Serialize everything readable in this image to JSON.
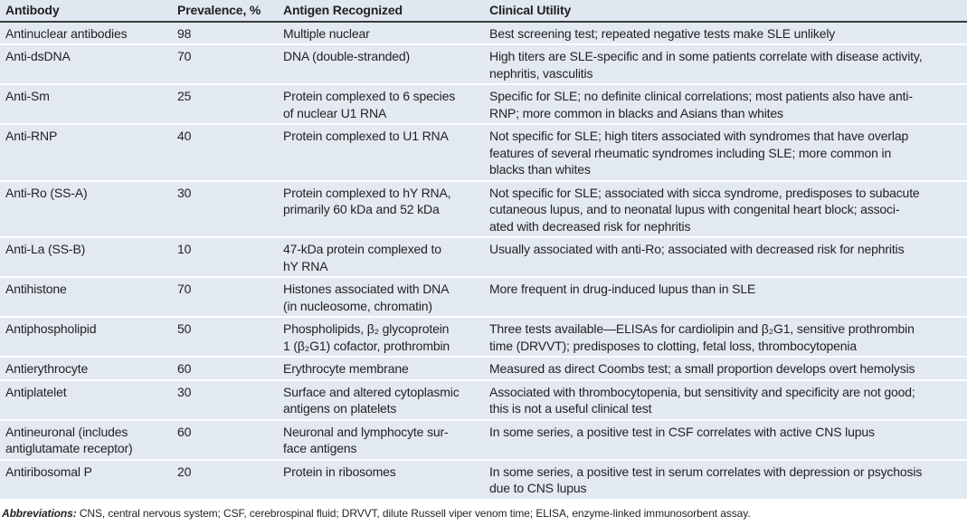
{
  "table": {
    "headers": [
      "Antibody",
      "Prevalence, %",
      "Antigen Recognized",
      "Clinical Utility"
    ],
    "rows": [
      [
        "Antinuclear antibodies",
        "98",
        "Multiple nuclear",
        "Best screening test; repeated negative tests make SLE unlikely"
      ],
      [
        "Anti-dsDNA",
        "70",
        "DNA (double-stranded)",
        "High titers are SLE-specific and in some patients correlate with disease activity,\nnephritis, vasculitis"
      ],
      [
        "Anti-Sm",
        "25",
        "Protein complexed to 6 species\nof nuclear U1 RNA",
        "Specific for SLE; no definite clinical correlations; most patients also have anti-\nRNP; more common in blacks and Asians than whites"
      ],
      [
        "Anti-RNP",
        "40",
        "Protein complexed to U1 RNA",
        "Not specific for SLE; high titers associated with syndromes that have overlap\nfeatures of several rheumatic syndromes including SLE; more common in\nblacks than whites"
      ],
      [
        "Anti-Ro (SS-A)",
        "30",
        "Protein complexed to hY RNA,\nprimarily 60 kDa and 52 kDa",
        "Not specific for SLE; associated with sicca syndrome, predisposes to subacute\ncutaneous lupus, and to neonatal lupus with congenital heart block; associ-\nated with decreased risk for nephritis"
      ],
      [
        "Anti-La (SS-B)",
        "10",
        "47-kDa protein complexed to\nhY RNA",
        "Usually associated with anti-Ro; associated with decreased risk for nephritis"
      ],
      [
        "Antihistone",
        "70",
        "Histones associated with DNA\n(in nucleosome, chromatin)",
        "More frequent in drug-induced lupus than in SLE"
      ],
      [
        "Antiphospholipid",
        "50",
        "Phospholipids, β₂ glycoprotein\n1 (β₂G1) cofactor, prothrombin",
        "Three tests available—ELISAs for cardiolipin and β₂G1, sensitive prothrombin\ntime (DRVVT); predisposes to clotting, fetal loss, thrombocytopenia"
      ],
      [
        "Antierythrocyte",
        "60",
        "Erythrocyte membrane",
        "Measured as direct Coombs test; a small proportion develops overt hemolysis"
      ],
      [
        "Antiplatelet",
        "30",
        "Surface and altered cytoplasmic\nantigens on platelets",
        "Associated with thrombocytopenia, but sensitivity and specificity are not good;\nthis is not a useful clinical test"
      ],
      [
        "Antineuronal (includes\nantiglutamate receptor)",
        "60",
        "Neuronal and lymphocyte sur-\nface antigens",
        "In some series, a positive test in CSF correlates with active CNS lupus"
      ],
      [
        "Antiribosomal P",
        "20",
        "Protein in ribosomes",
        "In some series, a positive test in serum correlates with depression or psychosis\ndue to CNS lupus"
      ]
    ]
  },
  "footnote": {
    "label": "Abbreviations:",
    "text": " CNS, central nervous system; CSF, cerebrospinal fluid; DRVVT, dilute Russell viper venom time; ELISA, enzyme-linked immunosorbent assay."
  }
}
